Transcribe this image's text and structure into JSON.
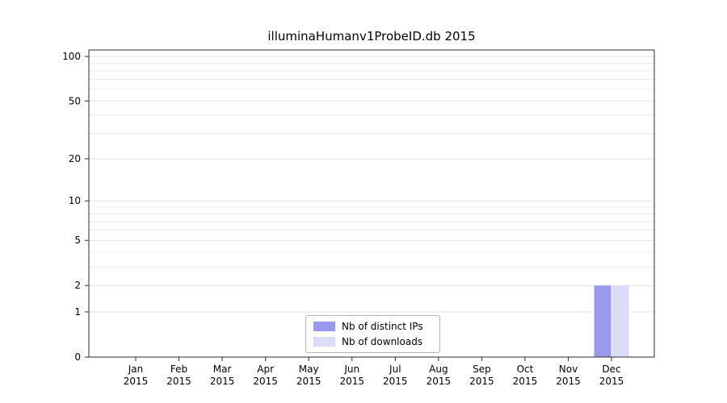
{
  "title": "illuminaHumanv1ProbeID.db 2015",
  "legend": {
    "items": [
      {
        "label": "Nb of distinct IPs",
        "color": "#9999ee"
      },
      {
        "label": "Nb of downloads",
        "color": "#dcdcf8"
      }
    ]
  },
  "axes": {
    "y_tick_labels": [
      "0",
      "1",
      "2",
      "5",
      "10",
      "20",
      "50",
      "100"
    ],
    "x_year_label": "2015"
  },
  "chart_data": {
    "type": "bar",
    "title": "illuminaHumanv1ProbeID.db 2015",
    "categories": [
      "Jan 2015",
      "Feb 2015",
      "Mar 2015",
      "Apr 2015",
      "May 2015",
      "Jun 2015",
      "Jul 2015",
      "Aug 2015",
      "Sep 2015",
      "Oct 2015",
      "Nov 2015",
      "Dec 2015"
    ],
    "month_labels": [
      "Jan",
      "Feb",
      "Mar",
      "Apr",
      "May",
      "Jun",
      "Jul",
      "Aug",
      "Sep",
      "Oct",
      "Nov",
      "Dec"
    ],
    "year_label": "2015",
    "series": [
      {
        "name": "Nb of distinct IPs",
        "color": "#9999ee",
        "values": [
          0,
          0,
          0,
          0,
          0,
          0,
          0,
          0,
          0,
          0,
          0,
          2
        ]
      },
      {
        "name": "Nb of downloads",
        "color": "#dcdcf8",
        "values": [
          0,
          0,
          0,
          0,
          0,
          0,
          0,
          0,
          0,
          0,
          0,
          2
        ]
      }
    ],
    "xlabel": "",
    "ylabel": "",
    "yscale": "log1p",
    "y_ticks": [
      0,
      1,
      2,
      5,
      10,
      20,
      50,
      100
    ],
    "y_minor_ticks": [
      3,
      4,
      6,
      7,
      8,
      9,
      30,
      40,
      60,
      70,
      80,
      90
    ],
    "ylim": [
      0,
      110
    ],
    "grid": "horizontal",
    "legend_position": "lower center (inside axes)"
  }
}
